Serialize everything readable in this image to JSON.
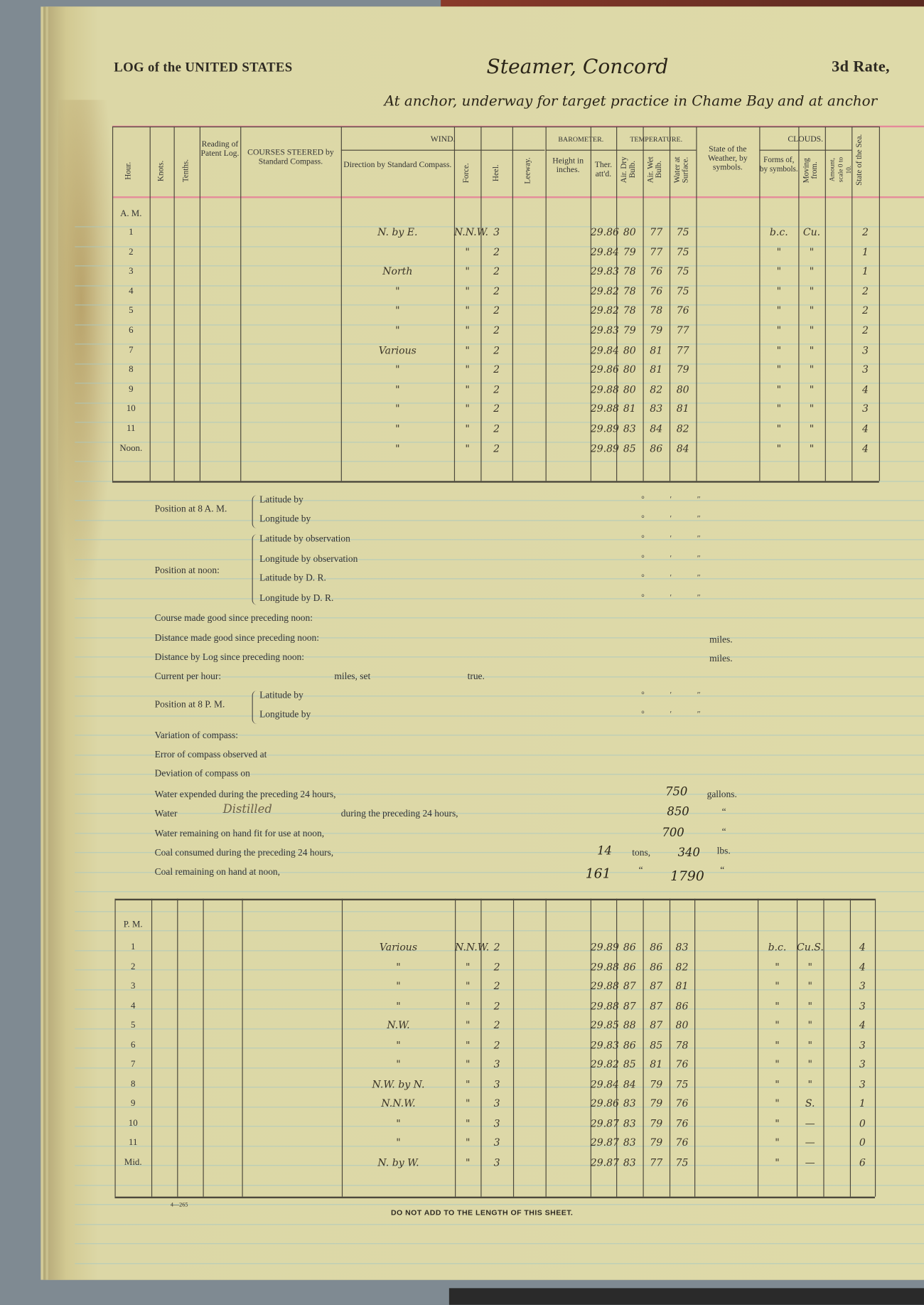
{
  "header": {
    "title": "LOG of the UNITED STATES",
    "vessel": "Steamer, Concord",
    "rate": "3d Rate,",
    "subtitle": "At anchor, underway for target practice in Chame Bay and at anchor"
  },
  "columns": {
    "hour": "Hour.",
    "knots": "Knots.",
    "tenths": "Tenths.",
    "patent": "Reading of Patent Log.",
    "courses": "COURSES STEERED by Standard Compass.",
    "wind": "WIND.",
    "wind_dir": "Direction by Standard Compass.",
    "force": "Force.",
    "heel": "Heel.",
    "leeway": "Leeway.",
    "barometer": "Barometer.",
    "height": "Height in inches.",
    "ther": "Ther. att'd.",
    "temperature": "Temperature.",
    "dry": "Air. Dry Bulb.",
    "wet": "Air. Wet Bulb.",
    "water": "Water at Surface.",
    "weather": "State of the Weather, by symbols.",
    "clouds": "CLOUDS.",
    "forms": "Forms of, by symbols.",
    "moving": "Moving from.",
    "amount": "Amount, scale 0 to 10.",
    "sea": "State of the Sea."
  },
  "am": {
    "label": "A. M.",
    "rows": [
      {
        "hour": "1",
        "course": "N. by E.",
        "wind": "N.N.W.",
        "force": "3",
        "baro": "29.86",
        "ther": "80",
        "dry": "77",
        "wet": "75",
        "weather": "b.c.",
        "forms": "Cu.",
        "amount": "2"
      },
      {
        "hour": "2",
        "course": "",
        "wind": "\"",
        "force": "2",
        "baro": "29.84",
        "ther": "79",
        "dry": "77",
        "wet": "75",
        "weather": "\"",
        "forms": "\"",
        "amount": "1"
      },
      {
        "hour": "3",
        "course": "North",
        "wind": "\"",
        "force": "2",
        "baro": "29.83",
        "ther": "78",
        "dry": "76",
        "wet": "75",
        "weather": "\"",
        "forms": "\"",
        "amount": "1"
      },
      {
        "hour": "4",
        "course": "\"",
        "wind": "\"",
        "force": "2",
        "baro": "29.82",
        "ther": "78",
        "dry": "76",
        "wet": "75",
        "weather": "\"",
        "forms": "\"",
        "amount": "2"
      },
      {
        "hour": "5",
        "course": "\"",
        "wind": "\"",
        "force": "2",
        "baro": "29.82",
        "ther": "78",
        "dry": "78",
        "wet": "76",
        "weather": "\"",
        "forms": "\"",
        "amount": "2"
      },
      {
        "hour": "6",
        "course": "\"",
        "wind": "\"",
        "force": "2",
        "baro": "29.83",
        "ther": "79",
        "dry": "79",
        "wet": "77",
        "weather": "\"",
        "forms": "\"",
        "amount": "2"
      },
      {
        "hour": "7",
        "course": "Various",
        "wind": "\"",
        "force": "2",
        "baro": "29.84",
        "ther": "80",
        "dry": "81",
        "wet": "77",
        "weather": "\"",
        "forms": "\"",
        "amount": "3"
      },
      {
        "hour": "8",
        "course": "\"",
        "wind": "\"",
        "force": "2",
        "baro": "29.86",
        "ther": "80",
        "dry": "81",
        "wet": "79",
        "weather": "\"",
        "forms": "\"",
        "amount": "3"
      },
      {
        "hour": "9",
        "course": "\"",
        "wind": "\"",
        "force": "2",
        "baro": "29.88",
        "ther": "80",
        "dry": "82",
        "wet": "80",
        "weather": "\"",
        "forms": "\"",
        "amount": "4"
      },
      {
        "hour": "10",
        "course": "\"",
        "wind": "\"",
        "force": "2",
        "baro": "29.88",
        "ther": "81",
        "dry": "83",
        "wet": "81",
        "weather": "\"",
        "forms": "\"",
        "amount": "3"
      },
      {
        "hour": "11",
        "course": "\"",
        "wind": "\"",
        "force": "2",
        "baro": "29.89",
        "ther": "83",
        "dry": "84",
        "wet": "82",
        "weather": "\"",
        "forms": "\"",
        "amount": "4"
      },
      {
        "hour": "Noon.",
        "course": "\"",
        "wind": "\"",
        "force": "2",
        "baro": "29.89",
        "ther": "85",
        "dry": "86",
        "wet": "84",
        "weather": "\"",
        "forms": "\"",
        "amount": "4"
      }
    ]
  },
  "pm": {
    "label": "P. M.",
    "rows": [
      {
        "hour": "1",
        "course": "Various",
        "wind": "N.N.W.",
        "force": "2",
        "baro": "29.89",
        "ther": "86",
        "dry": "86",
        "wet": "83",
        "weather": "b.c.",
        "forms": "Cu.S.",
        "amount": "4"
      },
      {
        "hour": "2",
        "course": "\"",
        "wind": "\"",
        "force": "2",
        "baro": "29.88",
        "ther": "86",
        "dry": "86",
        "wet": "82",
        "weather": "\"",
        "forms": "\"",
        "amount": "4"
      },
      {
        "hour": "3",
        "course": "\"",
        "wind": "\"",
        "force": "2",
        "baro": "29.88",
        "ther": "87",
        "dry": "87",
        "wet": "81",
        "weather": "\"",
        "forms": "\"",
        "amount": "3"
      },
      {
        "hour": "4",
        "course": "\"",
        "wind": "\"",
        "force": "2",
        "baro": "29.88",
        "ther": "87",
        "dry": "87",
        "wet": "86",
        "weather": "\"",
        "forms": "\"",
        "amount": "3"
      },
      {
        "hour": "5",
        "course": "N.W.",
        "wind": "\"",
        "force": "2",
        "baro": "29.85",
        "ther": "88",
        "dry": "87",
        "wet": "80",
        "weather": "\"",
        "forms": "\"",
        "amount": "4"
      },
      {
        "hour": "6",
        "course": "\"",
        "wind": "\"",
        "force": "2",
        "baro": "29.83",
        "ther": "86",
        "dry": "85",
        "wet": "78",
        "weather": "\"",
        "forms": "\"",
        "amount": "3"
      },
      {
        "hour": "7",
        "course": "\"",
        "wind": "\"",
        "force": "3",
        "baro": "29.82",
        "ther": "85",
        "dry": "81",
        "wet": "76",
        "weather": "\"",
        "forms": "\"",
        "amount": "3"
      },
      {
        "hour": "8",
        "course": "N.W. by N.",
        "wind": "\"",
        "force": "3",
        "baro": "29.84",
        "ther": "84",
        "dry": "79",
        "wet": "75",
        "weather": "\"",
        "forms": "\"",
        "amount": "3"
      },
      {
        "hour": "9",
        "course": "N.N.W.",
        "wind": "\"",
        "force": "3",
        "baro": "29.86",
        "ther": "83",
        "dry": "79",
        "wet": "76",
        "weather": "\"",
        "forms": "S.",
        "amount": "1"
      },
      {
        "hour": "10",
        "course": "\"",
        "wind": "\"",
        "force": "3",
        "baro": "29.87",
        "ther": "83",
        "dry": "79",
        "wet": "76",
        "weather": "\"",
        "forms": "—",
        "amount": "0"
      },
      {
        "hour": "11",
        "course": "\"",
        "wind": "\"",
        "force": "3",
        "baro": "29.87",
        "ther": "83",
        "dry": "79",
        "wet": "76",
        "weather": "\"",
        "forms": "—",
        "amount": "0"
      },
      {
        "hour": "Mid.",
        "course": "N. by W.",
        "wind": "\"",
        "force": "3",
        "baro": "29.87",
        "ther": "83",
        "dry": "77",
        "wet": "75",
        "weather": "\"",
        "forms": "—",
        "amount": "6"
      }
    ]
  },
  "position": {
    "at8am": "Position at 8 A. M.",
    "atnoon": "Position at noon:",
    "at8pm": "Position at 8 P. M.",
    "lat_by": "Latitude by",
    "lon_by": "Longitude by",
    "lat_obs": "Latitude by observation",
    "lon_obs": "Longitude by observation",
    "lat_dr": "Latitude by D. R.",
    "lon_dr": "Longitude by D. R.",
    "deg_marks": "° ′ ″"
  },
  "lines": {
    "course_made": "Course made good since preceding noon:",
    "distance_made": "Distance made good since preceding noon:",
    "distance_log": "Distance by Log since preceding noon:",
    "miles": "miles.",
    "current": "Current per hour:",
    "miles_set": "miles, set",
    "true": "true.",
    "variation": "Variation of compass:",
    "error": "Error of compass observed at",
    "deviation": "Deviation of compass on",
    "water_expended": "Water expended during the preceding 24 hours,",
    "water_expended_value": "750",
    "gallons": "gallons.",
    "water": "Water",
    "water_type": "Distilled",
    "water_during": "during the preceding 24 hours,",
    "water_distilled_value": "850",
    "ditto": "“",
    "water_remaining": "Water remaining on hand fit for use at noon,",
    "water_remaining_value": "700",
    "coal_consumed": "Coal consumed during the preceding 24 hours,",
    "coal_consumed_tons": "14",
    "tons": "tons,",
    "coal_consumed_lbs": "340",
    "lbs": "lbs.",
    "coal_remaining": "Coal remaining on hand at noon,",
    "coal_remaining_tons": "161",
    "coal_remaining_lbs": "1790"
  },
  "footer": {
    "form_number": "4—265",
    "notice": "DO NOT ADD TO THE LENGTH OF THIS SHEET."
  },
  "colors": {
    "paper": "#dedaa9",
    "red_rule": "#e58a9a",
    "blue_rule": "#a9c8c0",
    "ink": "#2a2418"
  }
}
